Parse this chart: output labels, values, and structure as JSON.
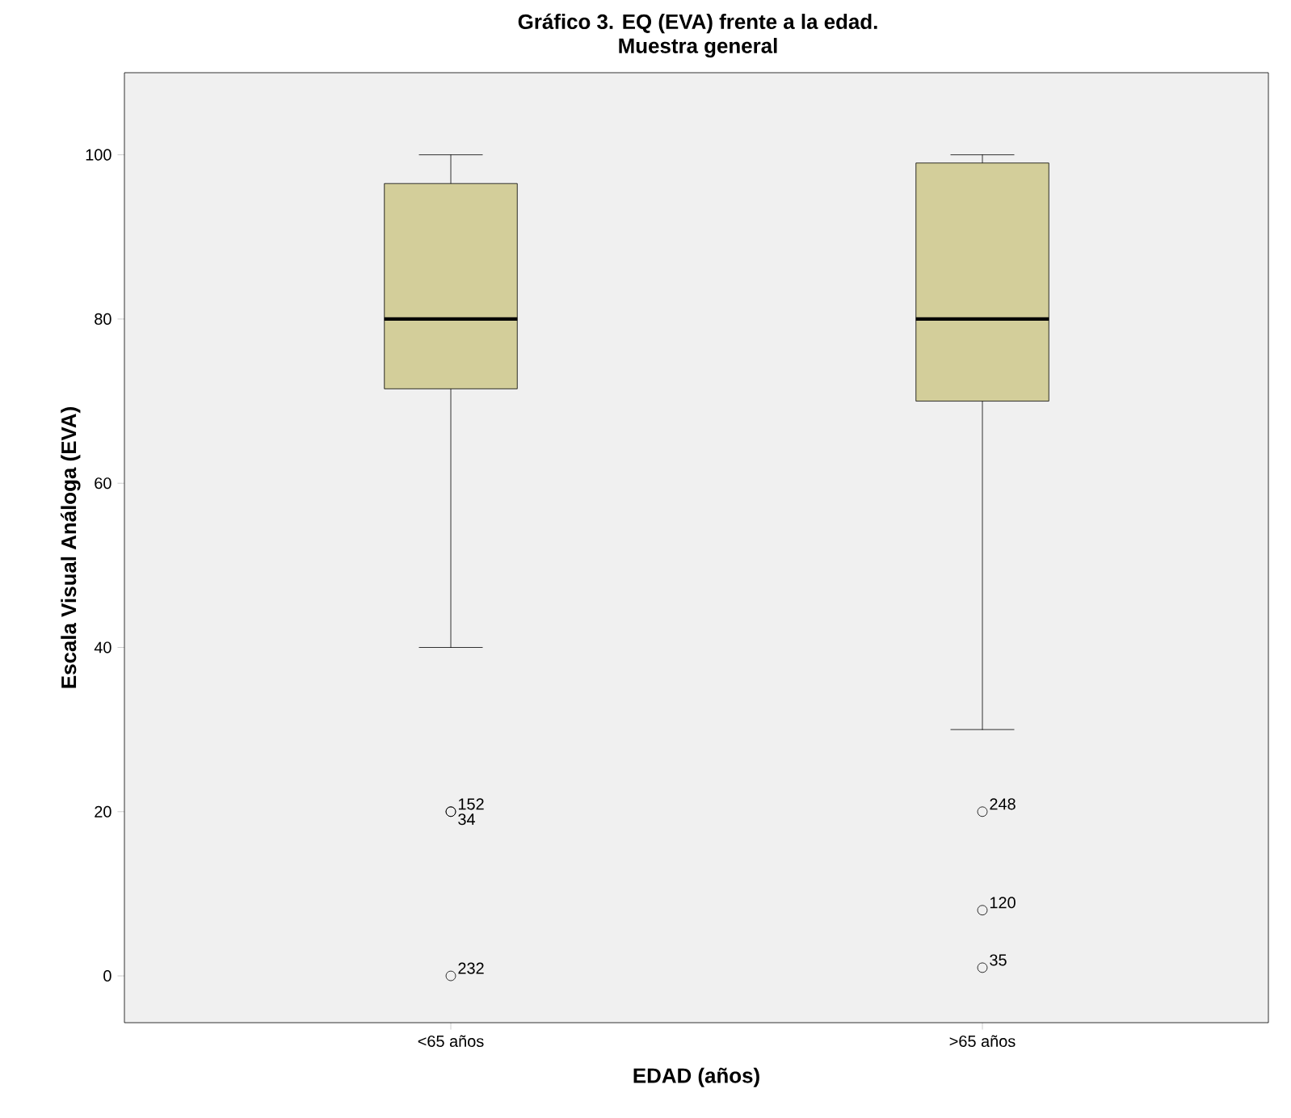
{
  "chart_data": {
    "type": "box",
    "title": "Gráfico 3. EQ (EVA) frente a la edad.",
    "subtitle": "Muestra general",
    "xlabel": "EDAD (años)",
    "ylabel": "Escala Visual Análoga (EVA)",
    "categories": [
      "<65 años",
      ">65 años"
    ],
    "color": "#d3ce9a",
    "boxes": [
      {
        "low": 40,
        "q1": 71.5,
        "median": 80,
        "q3": 96.5,
        "high": 100,
        "outliers": [
          20,
          20,
          0
        ]
      },
      {
        "low": 30,
        "q1": 70,
        "median": 80,
        "q3": 99,
        "high": 100,
        "outliers": [
          20,
          8,
          1
        ]
      }
    ],
    "ylim": [
      -5.7,
      110
    ],
    "yticks": [
      0,
      20,
      40,
      60,
      80,
      100
    ],
    "grid": false,
    "annotations": [
      "152",
      "34",
      "232",
      "248",
      "120",
      "35"
    ]
  }
}
